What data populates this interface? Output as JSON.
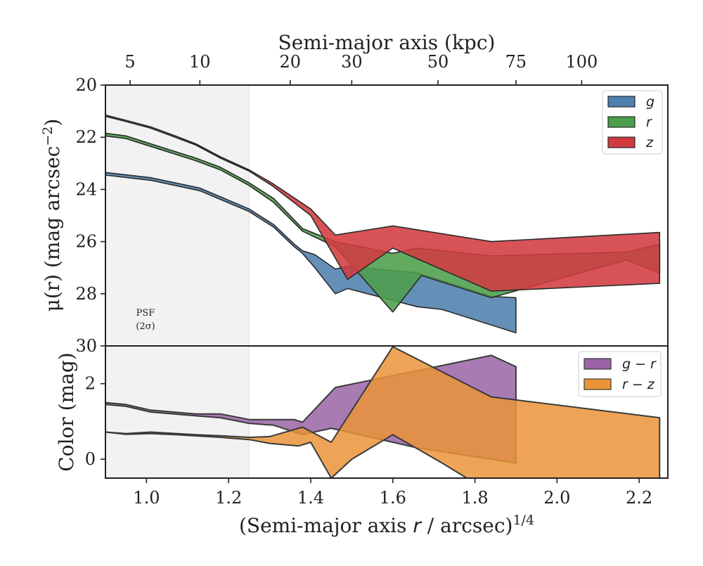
{
  "chart_data": [
    {
      "type": "area",
      "panel": "surface-brightness",
      "ylabel": "μ(r) (mag arcsec⁻²)",
      "ylabel_main": "μ(r) (mag arcsec",
      "ylabel_sup": "−2",
      "ylabel_close": ")",
      "top_xlabel": "Semi-major axis (kpc)",
      "xlim": [
        0.9,
        2.27
      ],
      "ylim": [
        30,
        20
      ],
      "y_inverted": true,
      "ytick_values": [
        20,
        22,
        24,
        26,
        28,
        30
      ],
      "ytick_labels": [
        "20",
        "22",
        "24",
        "26",
        "28",
        "30"
      ],
      "top_tick_positions": [
        0.96,
        1.13,
        1.35,
        1.5,
        1.71,
        1.9,
        2.06
      ],
      "top_tick_labels": [
        "5",
        "10",
        "20",
        "30",
        "50",
        "75",
        "100"
      ],
      "shaded_region": {
        "x": [
          0.9,
          1.25
        ],
        "label_line1": "PSF",
        "label_line2": "(2σ)"
      },
      "legend": {
        "placement": "top-right",
        "entries": [
          "g",
          "r",
          "z"
        ]
      },
      "series": [
        {
          "name": "g",
          "color": "#4e7fad",
          "upper_x": [
            0.9,
            1.01,
            1.13,
            1.25,
            1.31,
            1.36,
            1.38,
            1.41,
            1.46,
            1.49,
            1.66,
            1.84,
            1.9
          ],
          "upper_y": [
            23.35,
            23.55,
            23.95,
            24.75,
            25.35,
            26.1,
            26.35,
            26.5,
            27.05,
            26.95,
            27.2,
            28.1,
            28.15
          ],
          "lower_x": [
            0.9,
            1.01,
            1.13,
            1.25,
            1.31,
            1.36,
            1.38,
            1.41,
            1.46,
            1.49,
            1.66,
            1.72,
            1.9
          ],
          "lower_y": [
            23.45,
            23.65,
            24.05,
            24.85,
            25.45,
            26.2,
            26.45,
            27.0,
            28.0,
            27.8,
            28.5,
            28.6,
            29.5
          ]
        },
        {
          "name": "r",
          "color": "#4d9e4b",
          "upper_x": [
            0.9,
            0.95,
            1.01,
            1.07,
            1.12,
            1.18,
            1.25,
            1.31,
            1.38,
            1.46,
            1.6,
            1.66,
            1.84,
            2.17,
            2.25
          ],
          "upper_y": [
            21.85,
            21.95,
            22.25,
            22.55,
            22.8,
            23.15,
            23.75,
            24.35,
            25.5,
            26.0,
            26.45,
            26.25,
            26.55,
            26.4,
            26.1
          ],
          "lower_x": [
            0.9,
            0.95,
            1.01,
            1.07,
            1.12,
            1.18,
            1.25,
            1.31,
            1.38,
            1.46,
            1.6,
            1.67,
            1.84,
            2.17,
            2.25
          ],
          "lower_y": [
            21.95,
            22.05,
            22.35,
            22.65,
            22.9,
            23.25,
            23.85,
            24.5,
            25.6,
            26.2,
            28.7,
            27.3,
            28.15,
            26.7,
            27.2
          ]
        },
        {
          "name": "z",
          "color": "#d13b40",
          "upper_x": [
            0.9,
            0.95,
            1.01,
            1.07,
            1.12,
            1.18,
            1.25,
            1.31,
            1.4,
            1.46,
            1.6,
            1.84,
            2.25
          ],
          "upper_y": [
            21.15,
            21.35,
            21.6,
            21.95,
            22.25,
            22.75,
            23.25,
            23.8,
            24.75,
            25.75,
            25.4,
            26.0,
            25.65
          ],
          "lower_x": [
            0.9,
            0.95,
            1.01,
            1.07,
            1.12,
            1.18,
            1.25,
            1.31,
            1.4,
            1.49,
            1.6,
            1.84,
            2.25
          ],
          "lower_y": [
            21.2,
            21.4,
            21.65,
            22.0,
            22.3,
            22.8,
            23.3,
            23.9,
            25.0,
            27.45,
            26.25,
            27.9,
            27.6
          ]
        }
      ]
    },
    {
      "type": "area",
      "panel": "color",
      "xlabel_main": "(Semi-major axis ",
      "xlabel_italic": "r",
      "xlabel_rest": " / arcsec)",
      "xlabel_sup": "1/4",
      "xlabel": "(Semi-major axis r / arcsec)^1/4",
      "ylabel": "Color (mag)",
      "xlim": [
        0.9,
        2.27
      ],
      "ylim": [
        -0.5,
        3.0
      ],
      "xtick_values": [
        1.0,
        1.2,
        1.4,
        1.6,
        1.8,
        2.0,
        2.2
      ],
      "xtick_labels": [
        "1.0",
        "1.2",
        "1.4",
        "1.6",
        "1.8",
        "2.0",
        "2.2"
      ],
      "ytick_values": [
        0,
        2
      ],
      "ytick_labels": [
        "0",
        "2"
      ],
      "legend": {
        "placement": "top-right",
        "entries": [
          "g − r",
          "r − z"
        ]
      },
      "series": [
        {
          "name": "g − r",
          "color": "#9a64a6",
          "upper_x": [
            0.9,
            0.95,
            1.01,
            1.12,
            1.18,
            1.25,
            1.31,
            1.36,
            1.38,
            1.46,
            1.84,
            1.9
          ],
          "upper_y": [
            1.5,
            1.45,
            1.3,
            1.2,
            1.2,
            1.05,
            1.05,
            1.05,
            0.98,
            1.9,
            2.75,
            2.45
          ],
          "lower_x": [
            0.9,
            0.95,
            1.01,
            1.12,
            1.18,
            1.25,
            1.31,
            1.38,
            1.45,
            1.6,
            1.66,
            1.9
          ],
          "lower_y": [
            1.45,
            1.4,
            1.25,
            1.15,
            1.1,
            0.95,
            0.9,
            0.65,
            0.82,
            0.45,
            0.3,
            -0.1
          ]
        },
        {
          "name": "r − z",
          "color": "#ea9438",
          "upper_x": [
            0.9,
            0.95,
            1.01,
            1.12,
            1.18,
            1.25,
            1.3,
            1.38,
            1.45,
            1.6,
            1.84,
            2.25
          ],
          "upper_y": [
            0.72,
            0.68,
            0.72,
            0.65,
            0.62,
            0.58,
            0.6,
            0.85,
            0.45,
            2.98,
            1.65,
            1.1
          ],
          "lower_x": [
            0.9,
            0.95,
            1.01,
            1.07,
            1.18,
            1.25,
            1.3,
            1.37,
            1.4,
            1.45,
            1.5,
            1.6,
            1.72,
            1.78,
            2.25
          ],
          "lower_y": [
            0.72,
            0.66,
            0.68,
            0.65,
            0.58,
            0.52,
            0.42,
            0.35,
            0.45,
            -0.5,
            0.0,
            0.65,
            -0.1,
            -0.5,
            -0.5
          ]
        }
      ]
    }
  ]
}
